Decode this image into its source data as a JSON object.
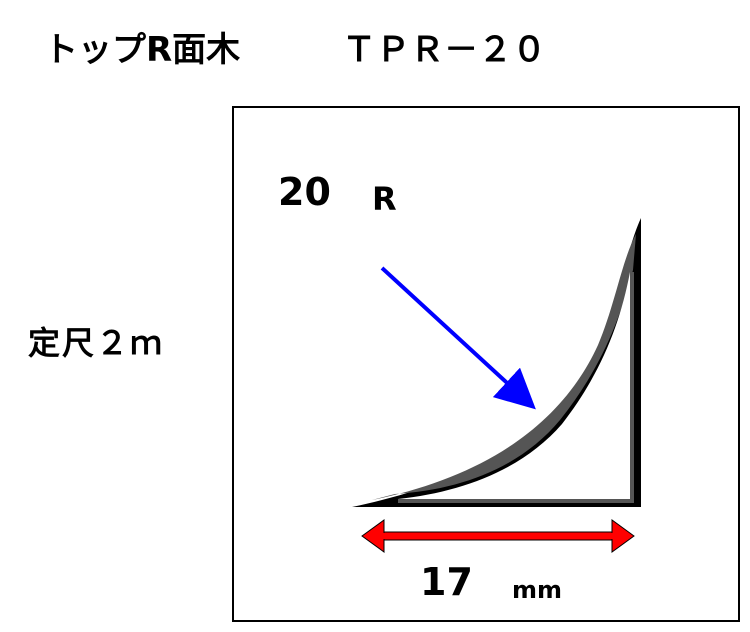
{
  "title": "トップR面木　　　ＴＰＲ－２０",
  "length_label": "定尺２ｍ",
  "diagram": {
    "radius_value": "20",
    "radius_unit": "R",
    "width_value": "17",
    "width_unit": "mm",
    "profile_fill": "#555555",
    "radius_arrow_color": "#0000ff",
    "width_arrow_color": "#ff0000"
  }
}
